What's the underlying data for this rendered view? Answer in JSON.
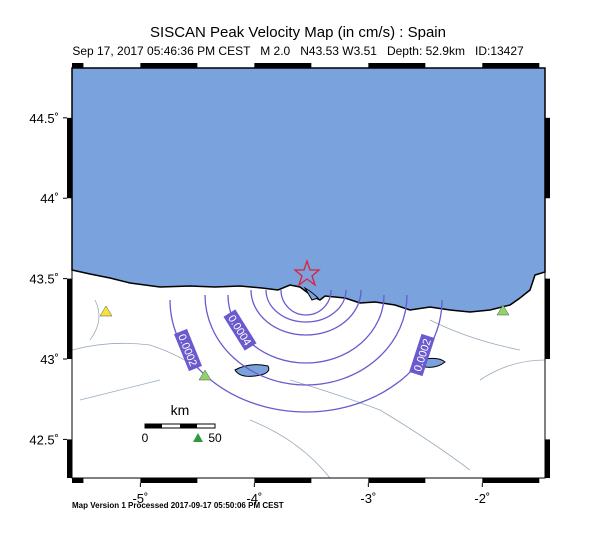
{
  "header": {
    "title": "SISCAN Peak Velocity Map (in cm/s) : Spain",
    "subtitle": "Sep 17, 2017 05:46:36 PM CEST   M 2.0   N43.53 W3.51   Depth: 52.9km   ID:13427"
  },
  "map": {
    "xlim": [
      -5.6,
      -1.45
    ],
    "ylim": [
      42.26,
      44.81
    ],
    "xticks": [
      {
        "value": -5,
        "label": "-5˚"
      },
      {
        "value": -4,
        "label": "-4˚"
      },
      {
        "value": -3,
        "label": "-3˚"
      },
      {
        "value": -2,
        "label": "-2˚"
      }
    ],
    "yticks": [
      {
        "value": 42.5,
        "label": "42.5˚"
      },
      {
        "value": 43,
        "label": "43˚"
      },
      {
        "value": 43.5,
        "label": "43.5˚"
      },
      {
        "value": 44,
        "label": "44˚"
      },
      {
        "value": 44.5,
        "label": "44.5˚"
      }
    ],
    "contour_labels": [
      0.0004,
      0.0002,
      0.0002
    ]
  },
  "scale_bar": {
    "unit": "km",
    "start": "0",
    "end": "50"
  },
  "footer": "Map Version 1 Processed 2017-09-17 05:50:06 PM CEST"
}
